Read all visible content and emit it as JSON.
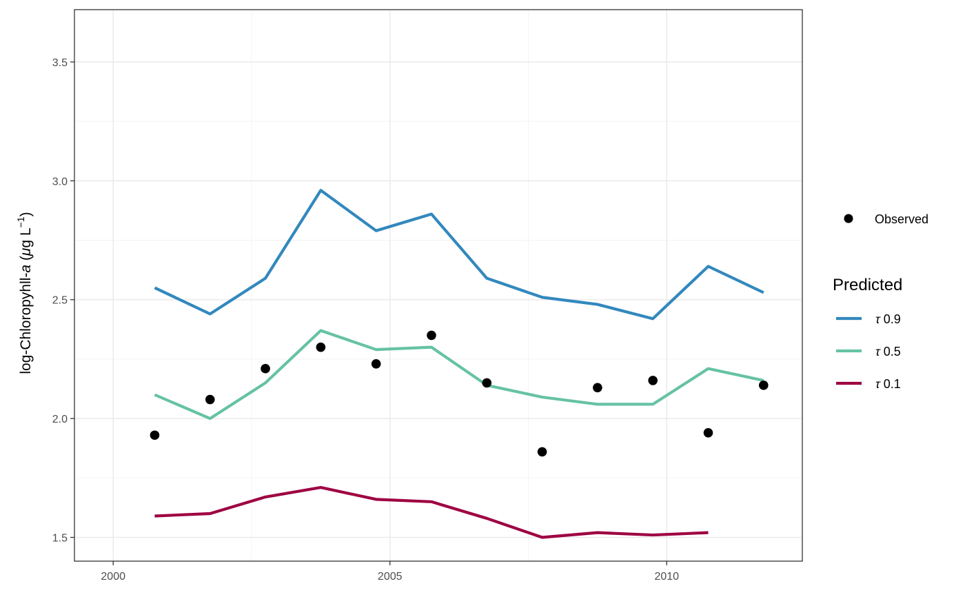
{
  "chart_data": {
    "type": "line",
    "ylabel": {
      "prefix": "log-Chloropyhll-",
      "italic": "a",
      "open": " (",
      "mu": "μ",
      "g": "g L",
      "sup": "−1",
      "close": ")"
    },
    "xlabel": "",
    "x_ticks": [
      2000,
      2005,
      2010
    ],
    "x_tick_labels": [
      "2000",
      "2005",
      "2010"
    ],
    "y_ticks": [
      1.5,
      2.0,
      2.5,
      3.0,
      3.5
    ],
    "y_tick_labels": [
      "1.5",
      "2.0",
      "2.5",
      "3.0",
      "3.5"
    ],
    "xlim": [
      1999.3,
      2012.45
    ],
    "ylim": [
      1.4,
      3.72
    ],
    "grid": true,
    "legend_position": "right",
    "observed": {
      "name": "Observed",
      "color": "#000000",
      "x": [
        2000.75,
        2001.75,
        2002.75,
        2003.75,
        2004.75,
        2005.75,
        2006.75,
        2007.75,
        2008.75,
        2009.75,
        2010.75,
        2011.75
      ],
      "y": [
        1.93,
        2.08,
        2.21,
        2.3,
        2.23,
        2.35,
        2.15,
        1.86,
        2.13,
        2.16,
        1.94,
        2.14
      ]
    },
    "legend_title": "Predicted",
    "series": [
      {
        "name": "τ 0.9",
        "tau": "τ",
        "value": "0.9",
        "color": "#3288BD",
        "x": [
          2000.75,
          2001.75,
          2002.75,
          2003.75,
          2004.75,
          2005.75,
          2006.75,
          2007.75,
          2008.75,
          2009.75,
          2010.75,
          2011.75
        ],
        "y": [
          2.55,
          2.44,
          2.59,
          2.96,
          2.79,
          2.86,
          2.59,
          2.51,
          2.48,
          2.42,
          2.64,
          2.53
        ]
      },
      {
        "name": "τ 0.5",
        "tau": "τ",
        "value": "0.5",
        "color": "#66C2A5",
        "x": [
          2000.75,
          2001.75,
          2002.75,
          2003.75,
          2004.75,
          2005.75,
          2006.75,
          2007.75,
          2008.75,
          2009.75,
          2010.75,
          2011.75
        ],
        "y": [
          2.1,
          2.0,
          2.15,
          2.37,
          2.29,
          2.3,
          2.14,
          2.09,
          2.06,
          2.06,
          2.21,
          2.16
        ]
      },
      {
        "name": "τ 0.1",
        "tau": "τ",
        "value": "0.1",
        "color": "#9E0142",
        "x": [
          2000.75,
          2001.75,
          2002.75,
          2003.75,
          2004.75,
          2005.75,
          2006.75,
          2007.75,
          2008.75,
          2009.75,
          2010.75
        ],
        "y": [
          1.59,
          1.6,
          1.67,
          1.71,
          1.66,
          1.65,
          1.58,
          1.5,
          1.52,
          1.51,
          1.52
        ]
      }
    ]
  }
}
